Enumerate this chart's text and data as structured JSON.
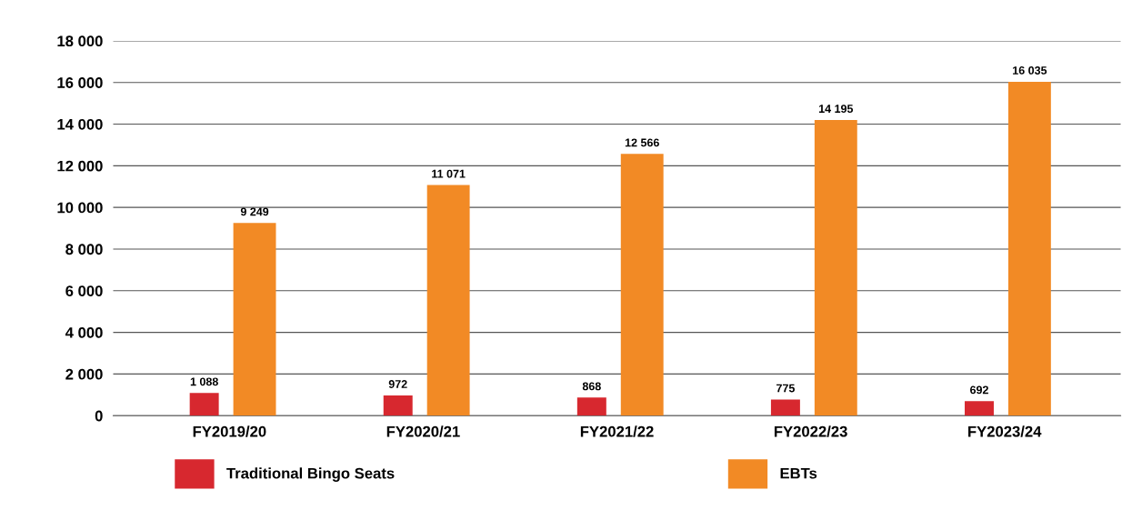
{
  "chart_data": {
    "type": "bar",
    "categories": [
      "FY2019/20",
      "FY2020/21",
      "FY2021/22",
      "FY2022/23",
      "FY2023/24"
    ],
    "series": [
      {
        "name": "Traditional Bingo Seats",
        "color": "#d7282f",
        "values": [
          1088,
          972,
          868,
          775,
          692
        ],
        "value_labels": [
          "1 088",
          "972",
          "868",
          "775",
          "692"
        ]
      },
      {
        "name": "EBTs",
        "color": "#f28a25",
        "values": [
          9249,
          11071,
          12566,
          14195,
          16035
        ],
        "value_labels": [
          "9 249",
          "11 071",
          "12 566",
          "14 195",
          "16 035"
        ]
      }
    ],
    "ylim": [
      0,
      18000
    ],
    "yticks": [
      0,
      {
        "value": 2000,
        "label": "2 000"
      },
      {
        "value": 4000,
        "label": "4 000"
      },
      {
        "value": 6000,
        "label": "6 000"
      },
      {
        "value": 8000,
        "label": "8 000"
      },
      {
        "value": 10000,
        "label": "10 000"
      },
      {
        "value": 12000,
        "label": "12 000"
      },
      {
        "value": 14000,
        "label": "14 000"
      },
      {
        "value": 16000,
        "label": "16 000"
      },
      {
        "value": 18000,
        "label": "18 000"
      }
    ],
    "grid": "y",
    "legend": "bottom"
  }
}
